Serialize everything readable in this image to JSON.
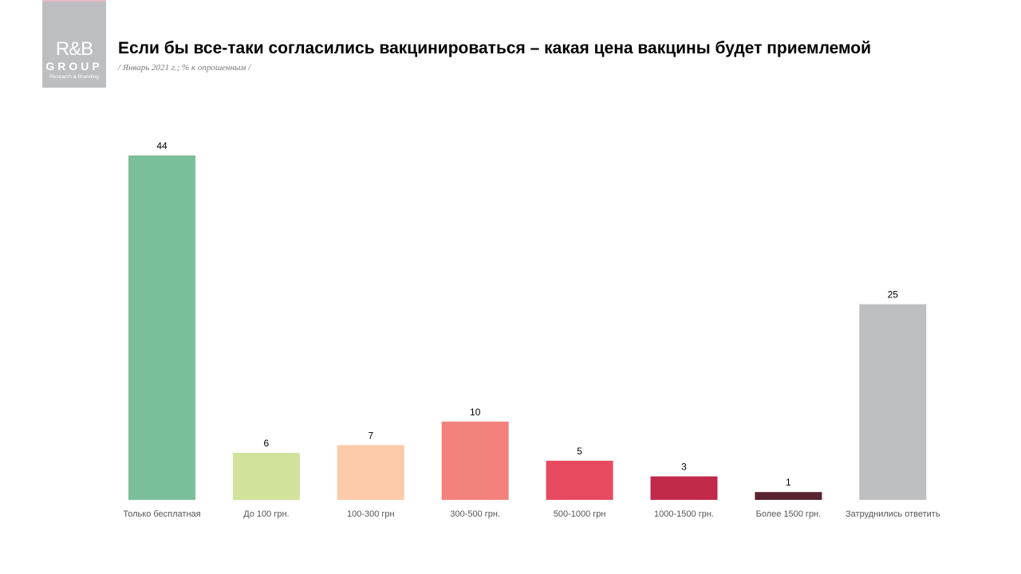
{
  "logo": {
    "text": "R&B",
    "group": "GROUP",
    "tagline": "Research & Branding"
  },
  "chart_data": {
    "type": "bar",
    "title": "Если бы все-таки согласились вакцинироваться – какая цена вакцины будет приемлемой",
    "subtitle": "/ Январь 2021 г.; % к опрошенным /",
    "categories": [
      "Только бесплатная",
      "До 100 грн.",
      "100-300 грн",
      "300-500 грн.",
      "500-1000 грн",
      "1000-1500 грн.",
      "Более 1500 грн.",
      "Затруднились ответить"
    ],
    "values": [
      44,
      6,
      7,
      10,
      5,
      3,
      1,
      25
    ],
    "colors": [
      "#7bbf9a",
      "#d1e29b",
      "#fdcba9",
      "#f2827b",
      "#e84a5f",
      "#c1294a",
      "#5a2332",
      "#bebfc1"
    ],
    "ylim": [
      0,
      44
    ],
    "grid": false,
    "legend": "none"
  }
}
